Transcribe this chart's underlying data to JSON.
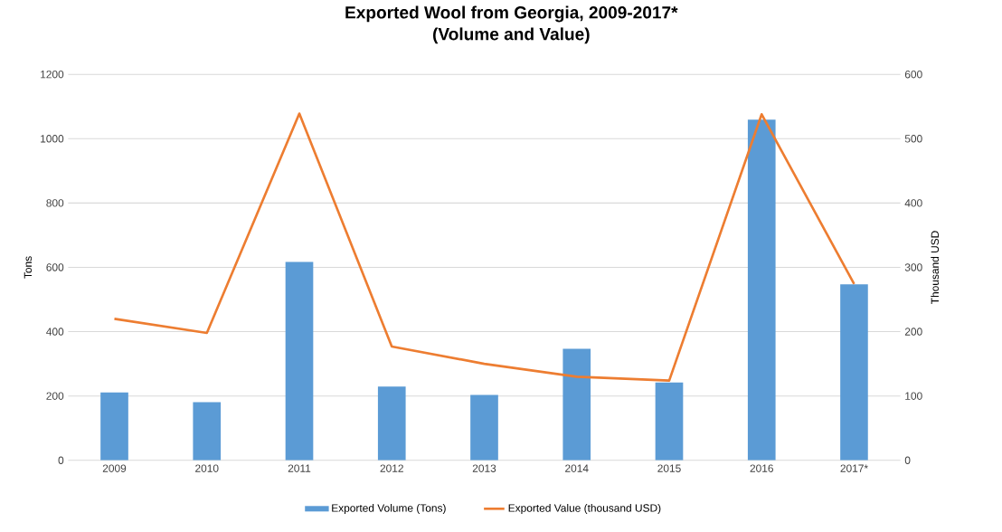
{
  "chart_data": {
    "type": "bar",
    "title": "Exported Wool from Georgia, 2009-2017*",
    "subtitle": "(Volume and Value)",
    "ylabel": "Tons",
    "y2label": "Thousand  USD",
    "categories": [
      "2009",
      "2010",
      "2011",
      "2012",
      "2013",
      "2014",
      "2015",
      "2016",
      "2017*"
    ],
    "series": [
      {
        "name": "Exported Volume (Tons)",
        "color": "#5b9bd5",
        "values": [
          211,
          181,
          617,
          229,
          203,
          347,
          242,
          1059,
          547
        ]
      },
      {
        "name": "Exported Value (thousand USD)",
        "type": "line",
        "axis": "y2",
        "color": "#ed7d31",
        "values": [
          220,
          198,
          539,
          177,
          150,
          130,
          124,
          538,
          274
        ]
      }
    ],
    "ylim": [
      0,
      1200
    ],
    "yticks": [
      0,
      200,
      400,
      600,
      800,
      1000,
      1200
    ],
    "y2lim": [
      0,
      600
    ],
    "y2ticks": [
      0,
      100,
      200,
      300,
      400,
      500,
      600
    ],
    "grid": "y",
    "legend": "bottom"
  }
}
